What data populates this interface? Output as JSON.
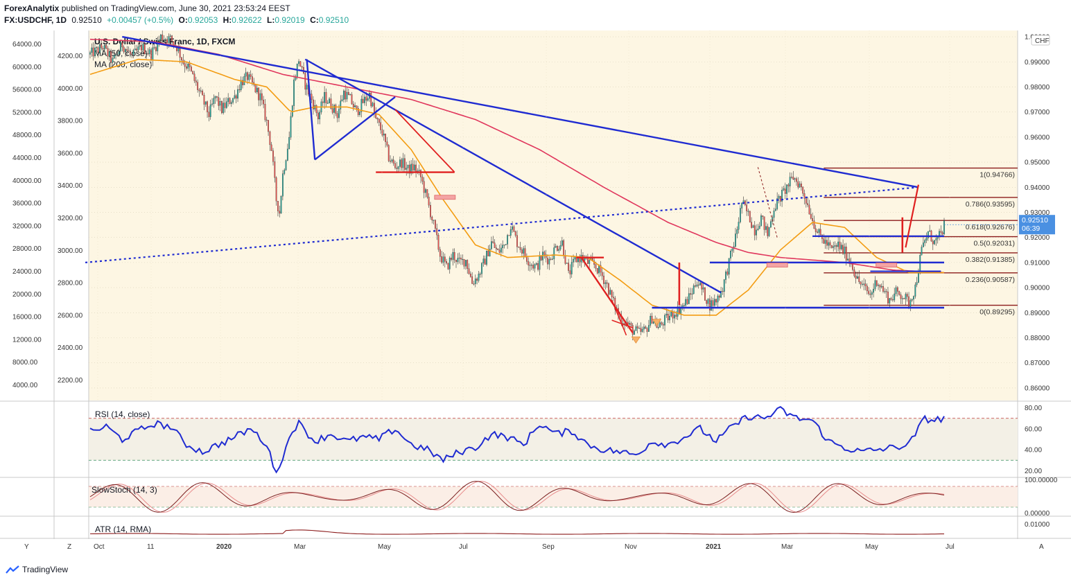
{
  "header": {
    "publisher": "ForexAnalytix",
    "published_text": "published on TradingView.com, June 30, 2021 23:53:24 EEST",
    "symbol": "FX:USDCHF, 1D",
    "last": "0.92510",
    "change": "+0.00457 (+0.5%)",
    "o_label": "O:",
    "o": "0.92053",
    "h_label": "H:",
    "h": "0.92622",
    "l_label": "L:",
    "l": "0.92019",
    "c_label": "C:",
    "c": "0.92510"
  },
  "footer": {
    "brand": "TradingView"
  },
  "colors": {
    "plot_bg": "#fdf6e3",
    "up": "#26a69a",
    "down": "#ef5350",
    "ma50": "#f39c12",
    "ma200": "#e0365c",
    "trend": "#1f2bd1",
    "drawing_red": "#e02020",
    "fib": "#8b1a1a",
    "rsi": "#1f2bd1",
    "stoch_k": "#7b1f1f",
    "stoch_d": "#e88b8b",
    "atr": "#8b1a1a"
  },
  "chart_data": {
    "type": "candlestick",
    "title": "U.S. Dollar / Swiss Franc, 1D, FXCM",
    "indicators": [
      "MA (50, close)",
      "MA (200, close)"
    ],
    "currency_badge": "CHF",
    "y_right_ticks": [
      "1.00000",
      "0.99000",
      "0.98000",
      "0.97000",
      "0.96000",
      "0.95000",
      "0.94000",
      "0.93000",
      "0.92000",
      "0.91000",
      "0.90000",
      "0.89000",
      "0.88000",
      "0.87000",
      "0.86000"
    ],
    "y_right_range": [
      0.855,
      1.0025
    ],
    "y_left_outer_ticks": [
      "64000.00",
      "60000.00",
      "56000.00",
      "52000.00",
      "48000.00",
      "44000.00",
      "40000.00",
      "36000.00",
      "32000.00",
      "28000.00",
      "24000.00",
      "20000.00",
      "16000.00",
      "12000.00",
      "8000.00",
      "4000.00"
    ],
    "y_left_inner_ticks": [
      "4200.00",
      "4000.00",
      "3800.00",
      "3600.00",
      "3400.00",
      "3200.00",
      "3000.00",
      "2800.00",
      "2600.00",
      "2400.00",
      "2200.00"
    ],
    "x_ticks": [
      "Oct",
      "11",
      "2020",
      "Mar",
      "May",
      "Jul",
      "Sep",
      "Nov",
      "2021",
      "Mar",
      "May",
      "Jul"
    ],
    "last_price": "0.92510",
    "countdown": "06:39",
    "fib_levels": [
      {
        "label": "1(0.94766)",
        "value": 0.94766
      },
      {
        "label": "0.786(0.93595)",
        "value": 0.93595
      },
      {
        "label": "0.618(0.92676)",
        "value": 0.92676
      },
      {
        "label": "0.5(0.92031)",
        "value": 0.92031
      },
      {
        "label": "0.382(0.91385)",
        "value": 0.91385
      },
      {
        "label": "0.236(0.90587)",
        "value": 0.90587
      },
      {
        "label": "0(0.89295)",
        "value": 0.89295
      }
    ],
    "close_path": [
      [
        0,
        0.993
      ],
      [
        8,
        0.996
      ],
      [
        14,
        0.99
      ],
      [
        20,
        0.997
      ],
      [
        26,
        0.992
      ],
      [
        32,
        0.996
      ],
      [
        38,
        0.993
      ],
      [
        44,
        1.0
      ],
      [
        50,
        0.999
      ],
      [
        54,
        0.996
      ],
      [
        58,
        0.99
      ],
      [
        62,
        0.987
      ],
      [
        66,
        0.981
      ],
      [
        70,
        0.975
      ],
      [
        74,
        0.969
      ],
      [
        78,
        0.976
      ],
      [
        82,
        0.971
      ],
      [
        86,
        0.974
      ],
      [
        90,
        0.976
      ],
      [
        94,
        0.982
      ],
      [
        98,
        0.984
      ],
      [
        102,
        0.98
      ],
      [
        106,
        0.976
      ],
      [
        110,
        0.966
      ],
      [
        113,
        0.955
      ],
      [
        116,
        0.935
      ],
      [
        118,
        0.93
      ],
      [
        120,
        0.945
      ],
      [
        124,
        0.96
      ],
      [
        127,
        0.982
      ],
      [
        130,
        0.991
      ],
      [
        134,
        0.981
      ],
      [
        138,
        0.975
      ],
      [
        142,
        0.968
      ],
      [
        146,
        0.976
      ],
      [
        150,
        0.973
      ],
      [
        154,
        0.969
      ],
      [
        158,
        0.978
      ],
      [
        162,
        0.975
      ],
      [
        166,
        0.97
      ],
      [
        170,
        0.974
      ],
      [
        174,
        0.977
      ],
      [
        178,
        0.967
      ],
      [
        182,
        0.962
      ],
      [
        186,
        0.952
      ],
      [
        190,
        0.948
      ],
      [
        194,
        0.95
      ],
      [
        198,
        0.947
      ],
      [
        202,
        0.948
      ],
      [
        206,
        0.944
      ],
      [
        210,
        0.935
      ],
      [
        214,
        0.925
      ],
      [
        218,
        0.913
      ],
      [
        222,
        0.908
      ],
      [
        226,
        0.913
      ],
      [
        230,
        0.91
      ],
      [
        234,
        0.911
      ],
      [
        238,
        0.902
      ],
      [
        242,
        0.905
      ],
      [
        246,
        0.911
      ],
      [
        250,
        0.918
      ],
      [
        254,
        0.914
      ],
      [
        258,
        0.917
      ],
      [
        262,
        0.925
      ],
      [
        266,
        0.918
      ],
      [
        270,
        0.914
      ],
      [
        274,
        0.91
      ],
      [
        278,
        0.908
      ],
      [
        282,
        0.913
      ],
      [
        286,
        0.911
      ],
      [
        290,
        0.916
      ],
      [
        294,
        0.918
      ],
      [
        298,
        0.905
      ],
      [
        302,
        0.911
      ],
      [
        306,
        0.912
      ],
      [
        310,
        0.91
      ],
      [
        314,
        0.909
      ],
      [
        318,
        0.906
      ],
      [
        322,
        0.901
      ],
      [
        326,
        0.894
      ],
      [
        330,
        0.888
      ],
      [
        334,
        0.886
      ],
      [
        338,
        0.883
      ],
      [
        342,
        0.882
      ],
      [
        346,
        0.883
      ],
      [
        350,
        0.888
      ],
      [
        354,
        0.884
      ],
      [
        358,
        0.887
      ],
      [
        362,
        0.889
      ],
      [
        366,
        0.891
      ],
      [
        370,
        0.893
      ],
      [
        374,
        0.897
      ],
      [
        378,
        0.903
      ],
      [
        382,
        0.898
      ],
      [
        386,
        0.893
      ],
      [
        390,
        0.895
      ],
      [
        394,
        0.9
      ],
      [
        398,
        0.91
      ],
      [
        402,
        0.92
      ],
      [
        406,
        0.934
      ],
      [
        410,
        0.929
      ],
      [
        414,
        0.923
      ],
      [
        418,
        0.928
      ],
      [
        422,
        0.921
      ],
      [
        426,
        0.932
      ],
      [
        430,
        0.936
      ],
      [
        434,
        0.94
      ],
      [
        438,
        0.944
      ],
      [
        442,
        0.941
      ],
      [
        446,
        0.935
      ],
      [
        450,
        0.927
      ],
      [
        454,
        0.921
      ],
      [
        458,
        0.918
      ],
      [
        462,
        0.915
      ],
      [
        466,
        0.917
      ],
      [
        470,
        0.914
      ],
      [
        474,
        0.91
      ],
      [
        478,
        0.903
      ],
      [
        482,
        0.9
      ],
      [
        486,
        0.897
      ],
      [
        490,
        0.903
      ],
      [
        494,
        0.899
      ],
      [
        498,
        0.895
      ],
      [
        502,
        0.898
      ],
      [
        506,
        0.897
      ],
      [
        510,
        0.894
      ],
      [
        514,
        0.9
      ],
      [
        518,
        0.915
      ],
      [
        522,
        0.922
      ],
      [
        526,
        0.918
      ],
      [
        530,
        0.921
      ],
      [
        532,
        0.925
      ]
    ],
    "ma50_path": [
      [
        0,
        0.985
      ],
      [
        30,
        0.991
      ],
      [
        60,
        0.99
      ],
      [
        90,
        0.983
      ],
      [
        110,
        0.98
      ],
      [
        125,
        0.97
      ],
      [
        140,
        0.972
      ],
      [
        160,
        0.972
      ],
      [
        180,
        0.969
      ],
      [
        200,
        0.955
      ],
      [
        220,
        0.935
      ],
      [
        240,
        0.917
      ],
      [
        260,
        0.912
      ],
      [
        290,
        0.913
      ],
      [
        310,
        0.912
      ],
      [
        330,
        0.903
      ],
      [
        350,
        0.893
      ],
      [
        370,
        0.889
      ],
      [
        390,
        0.889
      ],
      [
        410,
        0.899
      ],
      [
        430,
        0.915
      ],
      [
        450,
        0.926
      ],
      [
        470,
        0.924
      ],
      [
        490,
        0.912
      ],
      [
        510,
        0.906
      ],
      [
        532,
        0.906
      ]
    ],
    "ma200_path": [
      [
        0,
        0.999
      ],
      [
        40,
        0.998
      ],
      [
        80,
        0.993
      ],
      [
        120,
        0.985
      ],
      [
        160,
        0.98
      ],
      [
        200,
        0.975
      ],
      [
        240,
        0.967
      ],
      [
        280,
        0.955
      ],
      [
        320,
        0.94
      ],
      [
        360,
        0.926
      ],
      [
        390,
        0.918
      ],
      [
        410,
        0.914
      ],
      [
        430,
        0.912
      ],
      [
        450,
        0.911
      ],
      [
        470,
        0.91
      ],
      [
        500,
        0.907
      ],
      [
        532,
        0.906
      ]
    ],
    "rsi": {
      "label": "RSI (14, close)",
      "ticks": [
        "80.00",
        "60.00",
        "40.00",
        "20.00"
      ],
      "range": [
        15,
        85
      ],
      "upper": 70,
      "lower": 30,
      "path": [
        [
          0,
          57
        ],
        [
          10,
          62
        ],
        [
          20,
          50
        ],
        [
          30,
          58
        ],
        [
          40,
          65
        ],
        [
          50,
          62
        ],
        [
          60,
          45
        ],
        [
          70,
          38
        ],
        [
          80,
          45
        ],
        [
          90,
          52
        ],
        [
          100,
          60
        ],
        [
          110,
          45
        ],
        [
          115,
          20
        ],
        [
          120,
          30
        ],
        [
          125,
          58
        ],
        [
          130,
          65
        ],
        [
          140,
          48
        ],
        [
          150,
          55
        ],
        [
          160,
          48
        ],
        [
          170,
          52
        ],
        [
          180,
          50
        ],
        [
          190,
          60
        ],
        [
          200,
          45
        ],
        [
          210,
          40
        ],
        [
          220,
          30
        ],
        [
          230,
          38
        ],
        [
          240,
          42
        ],
        [
          250,
          55
        ],
        [
          260,
          52
        ],
        [
          270,
          45
        ],
        [
          280,
          65
        ],
        [
          290,
          55
        ],
        [
          300,
          58
        ],
        [
          310,
          45
        ],
        [
          320,
          40
        ],
        [
          330,
          38
        ],
        [
          340,
          35
        ],
        [
          350,
          48
        ],
        [
          360,
          45
        ],
        [
          370,
          52
        ],
        [
          380,
          60
        ],
        [
          390,
          48
        ],
        [
          400,
          62
        ],
        [
          410,
          72
        ],
        [
          420,
          70
        ],
        [
          430,
          78
        ],
        [
          440,
          70
        ],
        [
          450,
          68
        ],
        [
          460,
          48
        ],
        [
          470,
          42
        ],
        [
          480,
          38
        ],
        [
          490,
          40
        ],
        [
          500,
          42
        ],
        [
          510,
          45
        ],
        [
          520,
          70
        ],
        [
          525,
          68
        ],
        [
          532,
          70
        ]
      ]
    },
    "stoch": {
      "label": "SlowStoch (14, 3)",
      "ticks": [
        "100.00000",
        "0.00000"
      ],
      "upper": 80,
      "lower": 20
    },
    "atr": {
      "label": "ATR (14, RMA)",
      "ticks": [
        "0.01000"
      ]
    },
    "x_extra_buttons": [
      "Y",
      "Z",
      "A"
    ]
  }
}
